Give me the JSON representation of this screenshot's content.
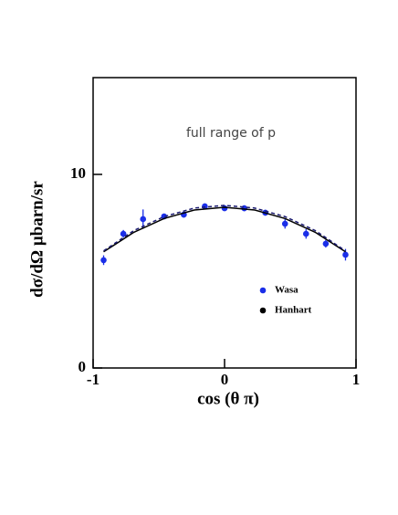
{
  "chart_data": {
    "type": "scatter",
    "annotation": "full range of p",
    "xlabel": "cos (θ π)",
    "ylabel": "dσ/dΩ μbarn/sr",
    "xlim": [
      -1,
      1
    ],
    "xticks": [
      -1,
      0,
      1
    ],
    "ylim": [
      0,
      15
    ],
    "yticks": [
      0,
      10
    ],
    "legend": "lower right",
    "series": [
      {
        "name": "Wasa",
        "type": "scatter",
        "color": "#1a2ee8",
        "x": [
          -0.92,
          -0.77,
          -0.62,
          -0.46,
          -0.31,
          -0.15,
          0,
          0.15,
          0.31,
          0.46,
          0.62,
          0.77,
          0.92
        ],
        "values": [
          5.57,
          6.93,
          7.69,
          7.83,
          7.92,
          8.35,
          8.25,
          8.25,
          8.02,
          7.45,
          6.93,
          6.42,
          5.85
        ],
        "errors": [
          0.25,
          0.2,
          0.5,
          0.15,
          0.15,
          0.15,
          0.1,
          0.15,
          0.15,
          0.25,
          0.25,
          0.2,
          0.3
        ]
      },
      {
        "name": "Hanhart",
        "type": "line",
        "color": "#000000",
        "style": "solid",
        "x": [
          -0.92,
          -0.69,
          -0.46,
          -0.23,
          0,
          0.23,
          0.46,
          0.69,
          0.92
        ],
        "values": [
          6.0,
          7.01,
          7.72,
          8.16,
          8.3,
          8.16,
          7.72,
          7.01,
          6.0
        ]
      },
      {
        "type": "line",
        "color": "#1a1a70",
        "style": "dashed",
        "x": [
          -0.92,
          -0.69,
          -0.46,
          -0.23,
          0,
          0.23,
          0.46,
          0.69,
          0.92
        ],
        "values": [
          6.05,
          7.1,
          7.82,
          8.26,
          8.4,
          8.26,
          7.82,
          7.1,
          6.05
        ]
      }
    ]
  }
}
